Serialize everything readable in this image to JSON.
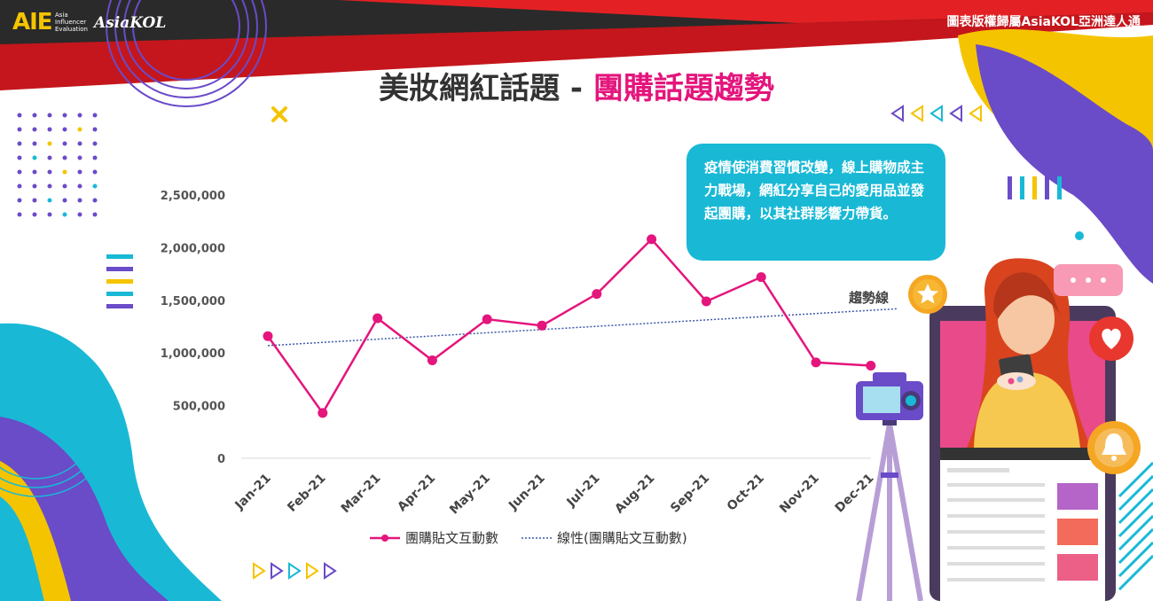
{
  "brand": {
    "logo_text": "AIE",
    "logo_sub": [
      "Asia",
      "Influencer",
      "Evaluation"
    ],
    "kol_logo": "AsiaKOL"
  },
  "copyright": "圖表版權歸屬AsiaKOL亞洲達人通",
  "title": {
    "part1": "美妝網紅話題 - ",
    "part2": "團購話題趨勢"
  },
  "note": "疫情使消費習慣改變，線上購物成主力戰場，網紅分享自己的愛用品並發起團購，以其社群影響力帶貨。",
  "colors": {
    "series": "#e4157c",
    "trend": "#3d5aa8",
    "accent_cyan": "#19b9d6",
    "accent_purple": "#6a4bc8",
    "accent_yellow": "#f5c400"
  },
  "chart_data": {
    "type": "line",
    "categories": [
      "Jan-21",
      "Feb-21",
      "Mar-21",
      "Apr-21",
      "May-21",
      "Jun-21",
      "Jul-21",
      "Aug-21",
      "Sep-21",
      "Oct-21",
      "Nov-21",
      "Dec-21"
    ],
    "series": [
      {
        "name": "團購貼文互動數",
        "values": [
          1160000,
          430000,
          1330000,
          930000,
          1320000,
          1260000,
          1560000,
          2080000,
          1490000,
          1720000,
          910000,
          880000
        ]
      }
    ],
    "trendline": {
      "name": "線性(團購貼文互動數)",
      "label": "趨勢線",
      "start": 1070000,
      "end": 1420000
    },
    "yticks": [
      "0",
      "500,000",
      "1,000,000",
      "1,500,000",
      "2,000,000",
      "2,500,000"
    ],
    "ylim": [
      0,
      2500000
    ],
    "legend": "bottom",
    "grid": false
  }
}
